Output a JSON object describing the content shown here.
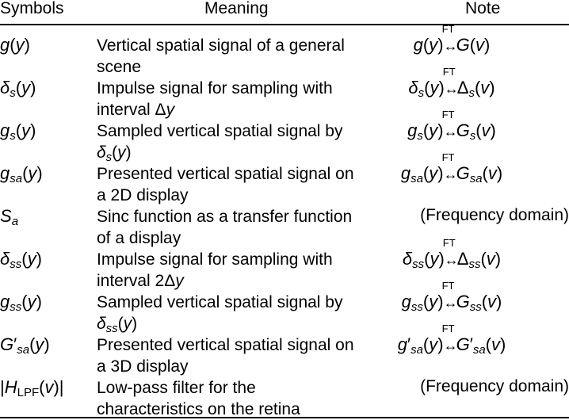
{
  "header": {
    "col1": "Symbols",
    "col2": "Meaning",
    "col3": "Note"
  },
  "rows": [
    {
      "symbol": "g(y)",
      "meaning_l1": "Vertical spatial signal of a general",
      "meaning_l2": "scene",
      "note": "g(y)↔G(v)"
    },
    {
      "symbol": "δs(y)",
      "meaning_l1": "Impulse signal for sampling with",
      "meaning_l2": "interval Δy",
      "note": "δs(y)↔Δs(v)"
    },
    {
      "symbol": "gs(y)",
      "meaning_l1": "Sampled vertical spatial signal by",
      "meaning_l2": "δs(y)",
      "note": "gs(y)↔Gs(v)"
    },
    {
      "symbol": "gsa(y)",
      "meaning_l1": "Presented vertical spatial signal on",
      "meaning_l2": "a 2D display",
      "note": "gsa(y)↔Gsa(v)"
    },
    {
      "symbol": "Sa",
      "meaning_l1": "Sinc function as a transfer function",
      "meaning_l2": "of a display",
      "note": "(Frequency domain)"
    },
    {
      "symbol": "δss(y)",
      "meaning_l1": "Impulse signal for sampling with",
      "meaning_l2": "interval 2Δy",
      "note": "δss(y)↔Δss(v)"
    },
    {
      "symbol": "gss(y)",
      "meaning_l1": "Sampled vertical spatial signal by",
      "meaning_l2": "δss(y)",
      "note": "gss(y)↔Gss(v)"
    },
    {
      "symbol": "G′sa(y)",
      "meaning_l1": "Presented vertical spatial signal on",
      "meaning_l2": "a 3D display",
      "note": "g′sa(y)↔G′sa(v)"
    },
    {
      "symbol": "|HLPF(v)|",
      "meaning_l1": "Low-pass filter for the",
      "meaning_l2": "characteristics on the retina",
      "note": "(Frequency domain)"
    }
  ],
  "ft_label": "FT",
  "math": {
    "g": "g",
    "G": "G",
    "y": "y",
    "v": "v",
    "delta": "δ",
    "Delta": "Δ",
    "S": "S",
    "H": "H",
    "prime": "′",
    "lp": "(",
    "rp": ")",
    "bar": "|",
    "arrow": "↔",
    "sub_s": "s",
    "sub_sa": "sa",
    "sub_ss": "ss",
    "sub_a": "a",
    "sub_lpf": "LPF",
    "space": " ",
    "interval_2": "2",
    "interval_word": "interval "
  }
}
